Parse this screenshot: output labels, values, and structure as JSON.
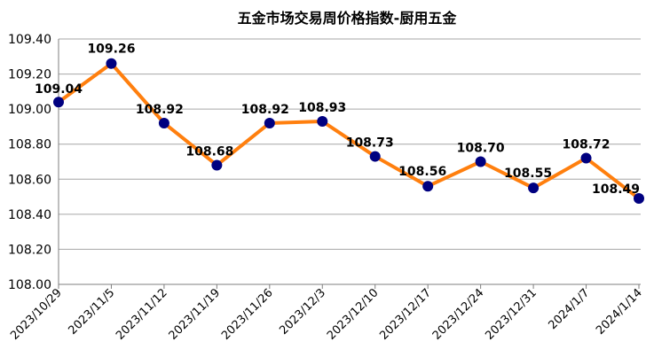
{
  "chart_data": {
    "type": "line",
    "title": "五金市场交易周价格指数-厨用五金",
    "xlabel": "",
    "ylabel": "",
    "categories": [
      "2023/10/29",
      "2023/11/5",
      "2023/11/12",
      "2023/11/19",
      "2023/11/26",
      "2023/12/3",
      "2023/12/10",
      "2023/12/17",
      "2023/12/24",
      "2023/12/31",
      "2024/1/7",
      "2024/1/14"
    ],
    "series": [
      {
        "values": [
          109.04,
          109.26,
          108.92,
          108.68,
          108.92,
          108.93,
          108.73,
          108.56,
          108.7,
          108.55,
          108.72,
          108.49
        ],
        "labels": [
          "109.04",
          "109.26",
          "108.92",
          "108.68",
          "108.92",
          "108.93",
          "108.73",
          "108.56",
          "108.70",
          "108.55",
          "108.72",
          "108.49"
        ],
        "line_color": "#ff7f0e",
        "marker_color": "#000080"
      }
    ],
    "ylim": [
      108.0,
      109.4
    ],
    "yticks": [
      "108.00",
      "108.20",
      "108.40",
      "108.60",
      "108.80",
      "109.00",
      "109.20",
      "109.40"
    ],
    "ytick_values": [
      108.0,
      108.2,
      108.4,
      108.6,
      108.8,
      109.0,
      109.2,
      109.4
    ],
    "grid": true,
    "legend": "none"
  }
}
